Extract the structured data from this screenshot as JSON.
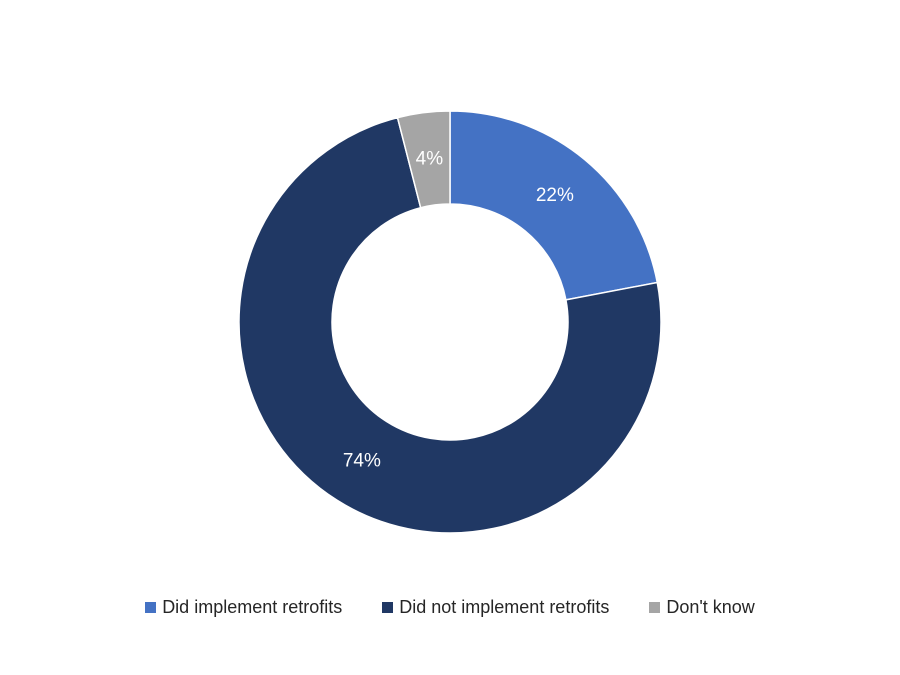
{
  "chart_data": {
    "type": "pie",
    "variant": "donut",
    "categories": [
      "Did implement retrofits",
      "Did not implement retrofits",
      "Don't know"
    ],
    "values": [
      22,
      74,
      4
    ],
    "value_labels": [
      "22%",
      "74%",
      "4%"
    ],
    "colors": [
      "#4472c4",
      "#203864",
      "#a5a5a5"
    ],
    "legend_position": "bottom"
  }
}
